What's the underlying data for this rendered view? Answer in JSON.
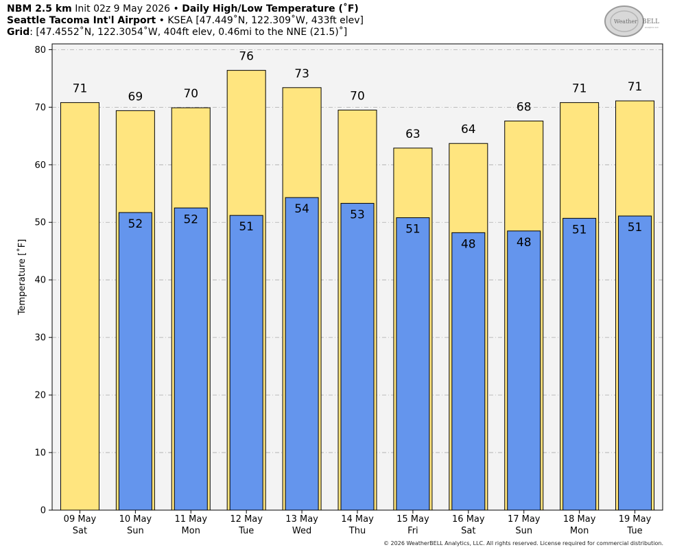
{
  "header": {
    "line1_model": "NBM 2.5 km",
    "line1_init": "Init 02z 9 May 2026",
    "line1_title": "Daily High/Low Temperature (˚F)",
    "line2_station": "Seattle Tacoma Int'l Airport",
    "line2_details": "KSEA [47.449˚N, 122.309˚W, 433ft elev]",
    "line3_label": "Grid",
    "line3_details": ": [47.4552˚N, 122.3054˚W, 404ft elev, 0.46mi to the NNE (21.5)˚]",
    "separator": "•"
  },
  "logo": {
    "text_left": "Weather",
    "text_right": "BELL",
    "subtext": "Analytics LLC"
  },
  "copyright": "© 2026 WeatherBELL Analytics, LLC. All rights reserved. License required for commercial distribution.",
  "colors": {
    "high_bar": "#FFE57F",
    "low_bar": "#6495ED",
    "plot_bg": "#F3F3F3",
    "grid": "#AAAAAA"
  },
  "chart_data": {
    "type": "bar",
    "ylabel": "Temperature [˚F]",
    "ylim": [
      0,
      81
    ],
    "yticks": [
      0,
      10,
      20,
      30,
      40,
      50,
      60,
      70,
      80
    ],
    "grid": true,
    "categories": [
      [
        "09 May",
        "Sat"
      ],
      [
        "10 May",
        "Sun"
      ],
      [
        "11 May",
        "Mon"
      ],
      [
        "12 May",
        "Tue"
      ],
      [
        "13 May",
        "Wed"
      ],
      [
        "14 May",
        "Thu"
      ],
      [
        "15 May",
        "Fri"
      ],
      [
        "16 May",
        "Sat"
      ],
      [
        "17 May",
        "Sun"
      ],
      [
        "18 May",
        "Mon"
      ],
      [
        "19 May",
        "Tue"
      ]
    ],
    "series": [
      {
        "key": "high",
        "values": [
          70.8,
          69.4,
          69.9,
          76.4,
          73.4,
          69.5,
          62.9,
          63.7,
          67.6,
          70.8,
          71.1
        ],
        "labels": [
          "71",
          "69",
          "70",
          "76",
          "73",
          "70",
          "63",
          "64",
          "68",
          "71",
          "71"
        ]
      },
      {
        "key": "low",
        "values": [
          null,
          51.7,
          52.5,
          51.2,
          54.3,
          53.3,
          50.8,
          48.2,
          48.5,
          50.7,
          51.1
        ],
        "labels": [
          "",
          "52",
          "52",
          "51",
          "54",
          "53",
          "51",
          "48",
          "48",
          "51",
          "51"
        ]
      }
    ]
  }
}
